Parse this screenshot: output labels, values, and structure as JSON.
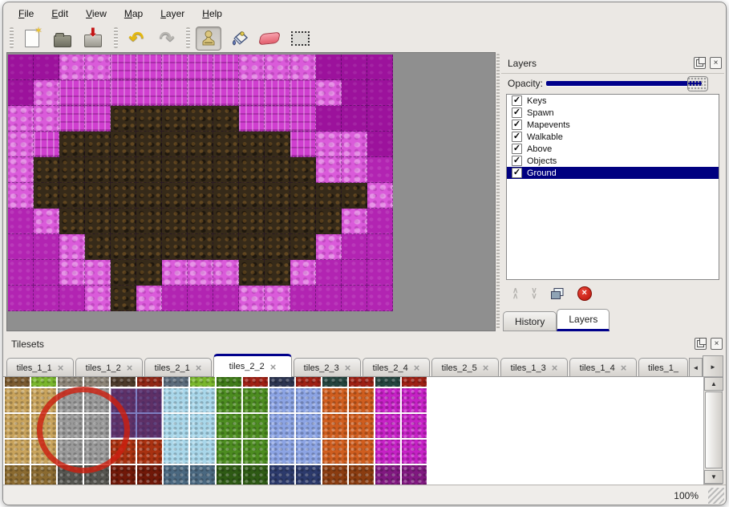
{
  "menu_bar": {
    "items": [
      "File",
      "Edit",
      "View",
      "Map",
      "Layer",
      "Help"
    ]
  },
  "toolbar": {
    "buttons": [
      {
        "id": "new",
        "icon": "new-document-icon",
        "active": false
      },
      {
        "id": "open",
        "icon": "open-folder-icon",
        "active": false
      },
      {
        "id": "save",
        "icon": "save-icon",
        "active": false
      },
      {
        "id": "undo",
        "icon": "undo-arrow-icon",
        "glyph": "↶",
        "active": false
      },
      {
        "id": "redo",
        "icon": "redo-arrow-icon",
        "glyph": "↷",
        "active": false
      },
      {
        "id": "stamp",
        "icon": "stamp-tool-icon",
        "active": true
      },
      {
        "id": "fill",
        "icon": "fill-bucket-icon",
        "active": false
      },
      {
        "id": "eraser",
        "icon": "eraser-icon",
        "active": false
      },
      {
        "id": "select",
        "icon": "marquee-select-icon",
        "active": false
      }
    ]
  },
  "map_view": {
    "tile_size": 32,
    "background": "#8f8f8f",
    "legend": {
      "A": "#9c129c",
      "B": "#b224b2",
      "C": "#da5bda",
      "D": "#cf3fcf",
      "E": "#362a19"
    },
    "grid": [
      "AACCDDDDDCCCAAA",
      "ACDDDDDDDDDDCAA",
      "CCDDEEEEEDDDAAA",
      "CDEEEEEEEEEDCCA",
      "CEEEEEEEEEEECCB",
      "CEEEEEEEEEEEEEC",
      "BCEEEEEEEEEEECB",
      "BBCEEEEEEEEECBB",
      "BBCCEECCCEECBBB",
      "BBBCECBBBCCBBBB"
    ]
  },
  "layers_panel": {
    "title": "Layers",
    "opacity_label": "Opacity:",
    "opacity_value": "100%",
    "accent_color": "#00008b",
    "layers": [
      {
        "name": "Keys",
        "checked": true,
        "selected": false
      },
      {
        "name": "Spawn",
        "checked": true,
        "selected": false
      },
      {
        "name": "Mapevents",
        "checked": true,
        "selected": false
      },
      {
        "name": "Walkable",
        "checked": true,
        "selected": false
      },
      {
        "name": "Above",
        "checked": true,
        "selected": false
      },
      {
        "name": "Objects",
        "checked": true,
        "selected": false
      },
      {
        "name": "Ground",
        "checked": true,
        "selected": true
      }
    ],
    "buttons": [
      "raise-layer",
      "lower-layer",
      "duplicate-layer",
      "delete-layer"
    ],
    "tabs": [
      {
        "label": "History",
        "active": false
      },
      {
        "label": "Layers",
        "active": true
      }
    ]
  },
  "tilesets_panel": {
    "title": "Tilesets",
    "tabs": [
      {
        "label": "tiles_1_1",
        "active": false
      },
      {
        "label": "tiles_1_2",
        "active": false
      },
      {
        "label": "tiles_2_1",
        "active": false
      },
      {
        "label": "tiles_2_2",
        "active": true
      },
      {
        "label": "tiles_2_3",
        "active": false
      },
      {
        "label": "tiles_2_4",
        "active": false
      },
      {
        "label": "tiles_2_5",
        "active": false
      },
      {
        "label": "tiles_1_3",
        "active": false
      },
      {
        "label": "tiles_1_4",
        "active": false
      },
      {
        "label": "tiles_1_",
        "active": false,
        "truncated": true
      }
    ],
    "tileset_grid": {
      "tile_pitch": 33,
      "column_colors": [
        "#c8a35c",
        "#c8a35c",
        "#9a9a9a",
        "#9a9a9a",
        "#a93110",
        "#a93110",
        "#a9d7ea",
        "#a9d7ea",
        "#4c8c20",
        "#4c8c20",
        "#8ca4e4",
        "#8ca4e4",
        "#cf5d1e",
        "#cf5d1e",
        "#c621c6",
        "#c621c6"
      ],
      "top_strip_colors": [
        "#7a5a30",
        "#79b62c",
        "#8d8578",
        "#8d8578",
        "#4c3a2a",
        "#8f2616",
        "#5c6c7c",
        "#79b62c",
        "#3e7a18",
        "#9e2014",
        "#2c3450",
        "#9e2014",
        "#24443e",
        "#9e2014",
        "#24443e",
        "#9e2014"
      ],
      "bottom_strip_colors": [
        "#8a6a30",
        "#8a6a30",
        "#555550",
        "#555550",
        "#701808",
        "#701808",
        "#4a6880",
        "#4a6880",
        "#2e5a14",
        "#2e5a14",
        "#2c3a6c",
        "#2c3a6c",
        "#8a3c10",
        "#8a3c10",
        "#801880",
        "#801880"
      ],
      "selected_tile": {
        "col": 4,
        "row": 1,
        "span_cols": 2,
        "span_rows": 2,
        "overlay_color": "rgba(48,48,155,0.62)"
      },
      "annotation_circle": {
        "color": "rgba(204,32,16,0.82)"
      }
    }
  },
  "status_bar": {
    "zoom_level": "100%"
  }
}
